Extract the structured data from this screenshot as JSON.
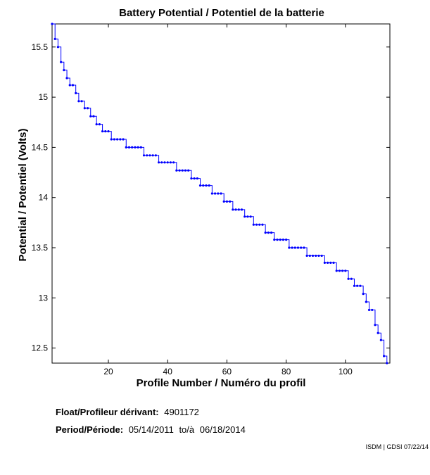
{
  "chart_data": {
    "type": "line",
    "title": "Battery Potential / Potentiel de la batterie",
    "xlabel": "Profile Number / Numéro du profil",
    "ylabel": "Potential / Potentiel (Volts)",
    "xlim": [
      1,
      115
    ],
    "ylim": [
      12.35,
      15.73
    ],
    "xticks": [
      20,
      40,
      60,
      80,
      100
    ],
    "yticks": [
      12.5,
      13,
      13.5,
      14,
      14.5,
      15,
      15.5
    ],
    "ytick_labels": [
      "12.5",
      "13",
      "13.5",
      "14",
      "14.5",
      "15",
      "15.5"
    ],
    "line_color": "#0000ff",
    "x": [
      1,
      2,
      3,
      4,
      5,
      6,
      7,
      8,
      9,
      10,
      11,
      12,
      13,
      14,
      15,
      16,
      17,
      18,
      19,
      20,
      21,
      22,
      23,
      24,
      25,
      26,
      27,
      28,
      29,
      30,
      31,
      32,
      33,
      34,
      35,
      36,
      37,
      38,
      39,
      40,
      41,
      42,
      43,
      44,
      45,
      46,
      47,
      48,
      49,
      50,
      51,
      52,
      53,
      54,
      55,
      56,
      57,
      58,
      59,
      60,
      61,
      62,
      63,
      64,
      65,
      66,
      67,
      68,
      69,
      70,
      71,
      72,
      73,
      74,
      75,
      76,
      77,
      78,
      79,
      80,
      81,
      82,
      83,
      84,
      85,
      86,
      87,
      88,
      89,
      90,
      91,
      92,
      93,
      94,
      95,
      96,
      97,
      98,
      99,
      100,
      101,
      102,
      103,
      104,
      105,
      106,
      107,
      108,
      109,
      110,
      111,
      112,
      113,
      114
    ],
    "values": [
      15.73,
      15.58,
      15.5,
      15.35,
      15.27,
      15.19,
      15.12,
      15.12,
      15.04,
      14.96,
      14.96,
      14.89,
      14.89,
      14.81,
      14.81,
      14.73,
      14.73,
      14.66,
      14.66,
      14.66,
      14.58,
      14.58,
      14.58,
      14.58,
      14.58,
      14.5,
      14.5,
      14.5,
      14.5,
      14.5,
      14.5,
      14.42,
      14.42,
      14.42,
      14.42,
      14.42,
      14.35,
      14.35,
      14.35,
      14.35,
      14.35,
      14.35,
      14.27,
      14.27,
      14.27,
      14.27,
      14.27,
      14.19,
      14.19,
      14.19,
      14.12,
      14.12,
      14.12,
      14.12,
      14.04,
      14.04,
      14.04,
      14.04,
      13.96,
      13.96,
      13.96,
      13.88,
      13.88,
      13.88,
      13.88,
      13.81,
      13.81,
      13.81,
      13.73,
      13.73,
      13.73,
      13.73,
      13.65,
      13.65,
      13.65,
      13.58,
      13.58,
      13.58,
      13.58,
      13.58,
      13.5,
      13.5,
      13.5,
      13.5,
      13.5,
      13.5,
      13.42,
      13.42,
      13.42,
      13.42,
      13.42,
      13.42,
      13.35,
      13.35,
      13.35,
      13.35,
      13.27,
      13.27,
      13.27,
      13.27,
      13.19,
      13.19,
      13.12,
      13.12,
      13.12,
      13.04,
      12.96,
      12.88,
      12.88,
      12.73,
      12.65,
      12.58,
      12.42,
      12.35
    ]
  },
  "info": {
    "float_label": "Float/Profileur dérivant:",
    "float_value": "4901172",
    "period_label": "Period/Période:",
    "period_start": "05/14/2011",
    "period_sep": "to/à",
    "period_end": "06/18/2014"
  },
  "credit": "ISDM | GDSI 07/22/14"
}
